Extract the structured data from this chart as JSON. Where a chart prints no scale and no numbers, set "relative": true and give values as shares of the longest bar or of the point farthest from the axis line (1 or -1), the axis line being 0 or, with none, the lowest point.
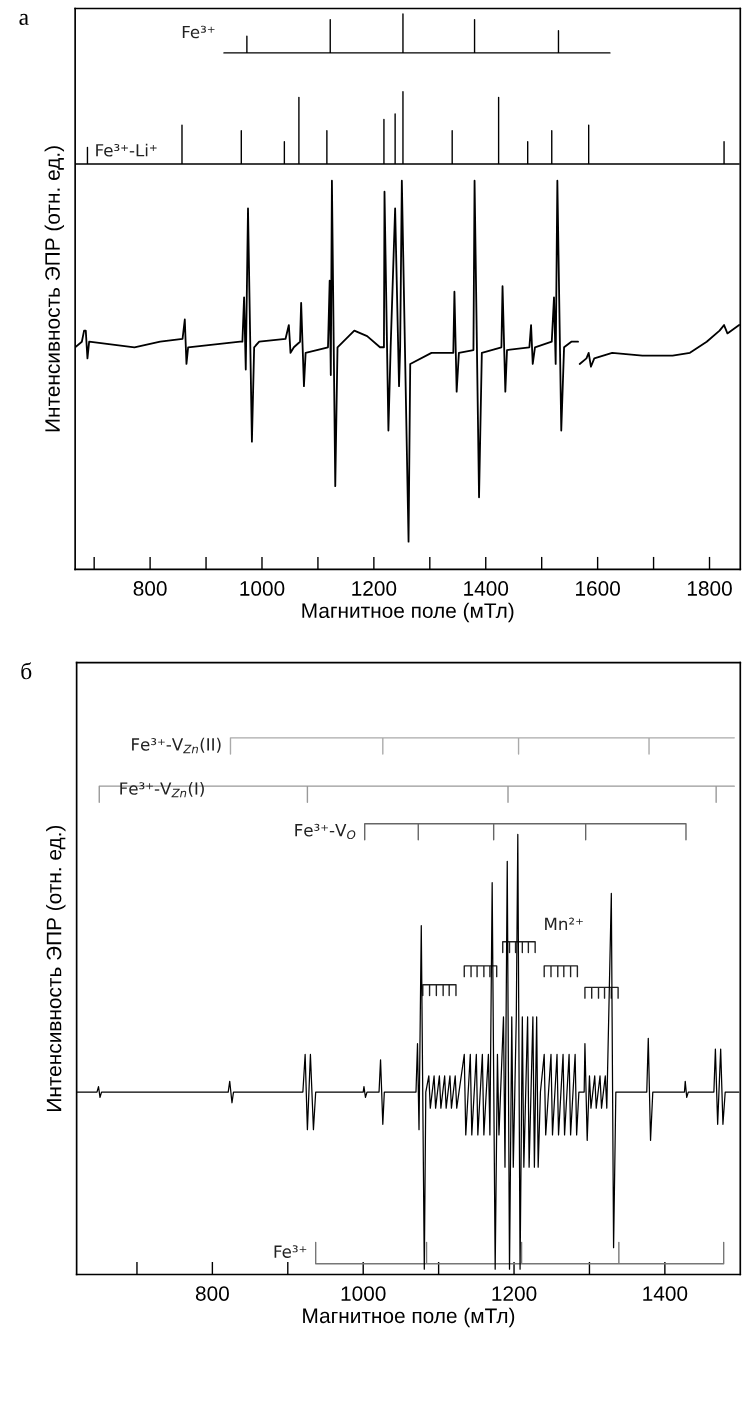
{
  "chart_data": [
    {
      "type": "line",
      "title": "а",
      "xlabel": "Магнитное поле (мТл)",
      "ylabel": "Интенсивность ЭПР (отн. ед.)",
      "relative": true,
      "tick_labels": "x",
      "xlim": [
        666,
        1855
      ],
      "xticks": [
        {
          "value": 700,
          "label": null
        },
        800,
        {
          "value": 900,
          "label": null
        },
        1000,
        {
          "value": 1100,
          "label": null
        },
        1200,
        {
          "value": 1300,
          "label": null
        },
        1400,
        {
          "value": 1500,
          "label": null
        },
        1600,
        {
          "value": 1700,
          "label": null
        },
        1800
      ],
      "series": [
        {
          "name": "Fe³⁺",
          "color": "#000000",
          "x": [
            932,
            973,
            973,
            973,
            1122,
            1122,
            1122,
            1252,
            1252,
            1252,
            1380,
            1380,
            1380,
            1530,
            1530,
            1530,
            1622
          ],
          "values": [
            0.93,
            0.93,
            0.96,
            0.93,
            0.93,
            0.99,
            0.93,
            0.93,
            1.0,
            0.93,
            0.93,
            0.99,
            0.93,
            0.93,
            0.97,
            0.93,
            0.93
          ]
        },
        {
          "name": "Fe³⁺-Li⁺",
          "color": "#000000",
          "x": [
            666,
            688,
            688,
            688,
            857,
            857,
            857,
            963,
            963,
            963,
            1040,
            1040,
            1040,
            1066,
            1066,
            1066,
            1116,
            1116,
            1116,
            1218,
            1218,
            1218,
            1238,
            1238,
            1238,
            1252,
            1252,
            1252,
            1340,
            1340,
            1340,
            1423,
            1423,
            1423,
            1475,
            1475,
            1475,
            1518,
            1518,
            1518,
            1584,
            1584,
            1584,
            1826,
            1826,
            1826,
            1853
          ],
          "values": [
            0.73,
            0.73,
            0.76,
            0.73,
            0.73,
            0.8,
            0.73,
            0.73,
            0.79,
            0.73,
            0.73,
            0.77,
            0.73,
            0.73,
            0.85,
            0.73,
            0.73,
            0.79,
            0.73,
            0.73,
            0.81,
            0.73,
            0.73,
            0.82,
            0.73,
            0.73,
            0.86,
            0.73,
            0.73,
            0.79,
            0.73,
            0.73,
            0.85,
            0.73,
            0.73,
            0.77,
            0.73,
            0.73,
            0.79,
            0.73,
            0.73,
            0.8,
            0.73,
            0.73,
            0.77,
            0.73,
            0.73
          ]
        },
        {
          "color": "#000000",
          "x": [
            666,
            678,
            682,
            685,
            688,
            691,
            772,
            818,
            858,
            862,
            865,
            868,
            961,
            965,
            968,
            971,
            975,
            982,
            986,
            995,
            1042,
            1048,
            1051,
            1057,
            1068,
            1070,
            1075,
            1078,
            1118,
            1121,
            1123,
            1125,
            1131,
            1135,
            1165,
            1188,
            1211,
            1218,
            1219,
            1226,
            1230,
            1238,
            1245,
            1247,
            1250,
            1262,
            1265,
            1303,
            1342,
            1344,
            1348,
            1352,
            1378,
            1380,
            1388,
            1393,
            1428,
            1430,
            1435,
            1438,
            1478,
            1481,
            1484,
            1488,
            1518,
            1522,
            1525,
            1528,
            1535,
            1540,
            1553,
            1565,
            1567,
            1568,
            1580,
            1584,
            1588,
            1594,
            1626,
            1680,
            1734,
            1765,
            1795,
            1818,
            1826,
            1832,
            1853
          ],
          "values": [
            0.4,
            0.41,
            0.43,
            0.43,
            0.38,
            0.41,
            0.4,
            0.41,
            0.415,
            0.45,
            0.37,
            0.4,
            0.41,
            0.41,
            0.49,
            0.36,
            0.65,
            0.23,
            0.4,
            0.41,
            0.415,
            0.44,
            0.39,
            0.4,
            0.41,
            0.48,
            0.33,
            0.39,
            0.4,
            0.52,
            0.35,
            0.7,
            0.15,
            0.4,
            0.43,
            0.42,
            0.4,
            0.4,
            0.68,
            0.25,
            0.4,
            0.65,
            0.33,
            0.4,
            0.7,
            0.05,
            0.37,
            0.39,
            0.39,
            0.5,
            0.32,
            0.39,
            0.395,
            0.7,
            0.13,
            0.39,
            0.4,
            0.51,
            0.32,
            0.395,
            0.4,
            0.44,
            0.37,
            0.4,
            0.41,
            0.49,
            0.37,
            0.7,
            0.25,
            0.4,
            0.41,
            0.41,
            null,
            0.37,
            0.38,
            0.39,
            0.365,
            0.38,
            0.39,
            0.385,
            0.385,
            0.39,
            0.41,
            0.43,
            0.44,
            0.425,
            0.44
          ]
        }
      ]
    },
    {
      "type": "line",
      "title": "б",
      "xlabel": "Магнитное поле (мТл)",
      "ylabel": "Интенсивность ЭПР (отн. ед.)",
      "relative": true,
      "tick_labels": "x",
      "xlim": [
        620,
        1500
      ],
      "xticks": [
        {
          "value": 700,
          "label": null
        },
        800,
        {
          "value": 900,
          "label": null
        },
        1000,
        {
          "value": 1100,
          "label": null
        },
        1200,
        {
          "value": 1300,
          "label": null
        },
        1400
      ],
      "series": [
        {
          "name": "Fe³⁺-V$_{Zn}$(II)",
          "color": "#aaaaaa",
          "x": [
            824,
            824,
            1026,
            1026,
            1026,
            1206,
            1206,
            1206,
            1379,
            1379,
            1379,
            1492
          ],
          "values": [
            0.97,
            1.0,
            1.0,
            0.97,
            1.0,
            1.0,
            0.97,
            1.0,
            1.0,
            0.97,
            1.0,
            1.0
          ]
        },
        {
          "name": "Fe³⁺-V$_{Zn}$(I)",
          "color": "#999999",
          "x": [
            650,
            650,
            926,
            926,
            926,
            1192,
            1192,
            1192,
            1468,
            1468,
            1468,
            1492
          ],
          "values": [
            0.88,
            0.91,
            0.91,
            0.88,
            0.91,
            0.91,
            0.88,
            0.91,
            0.91,
            0.88,
            0.91,
            0.91
          ]
        },
        {
          "name": "Fe³⁺-V$_{O}$",
          "color": "#666666",
          "x": [
            1002,
            1002,
            1073,
            1073,
            1073,
            1173,
            1173,
            1173,
            1295,
            1295,
            1295,
            1428,
            1428
          ],
          "values": [
            0.81,
            0.84,
            0.84,
            0.81,
            0.84,
            0.84,
            0.81,
            0.84,
            0.84,
            0.81,
            0.84,
            0.84,
            0.81
          ]
        },
        {
          "name": "Mn²⁺",
          "color": "#222222",
          "x": [
            1079,
            1079,
            1088,
            1088,
            1088,
            1097,
            1097,
            1097,
            1106,
            1106,
            1106,
            1114,
            1114,
            1114,
            1123,
            1123,
            1128,
            1134,
            1134,
            1143,
            1143,
            1143,
            1151,
            1151,
            1151,
            1160,
            1160,
            1160,
            1168,
            1168,
            1168,
            1177,
            1177,
            1181,
            1185,
            1185,
            1194,
            1194,
            1194,
            1202,
            1202,
            1202,
            1211,
            1211,
            1211,
            1219,
            1219,
            1219,
            1228,
            1228,
            1234,
            1240,
            1240,
            1249,
            1249,
            1249,
            1258,
            1258,
            1258,
            1266,
            1266,
            1266,
            1275,
            1275,
            1275,
            1284,
            1284,
            1289,
            1294,
            1294,
            1303,
            1303,
            1303,
            1312,
            1312,
            1312,
            1320,
            1320,
            1320,
            1329,
            1329,
            1329,
            1338,
            1338
          ],
          "values": [
            0.52,
            0.54,
            0.54,
            0.52,
            0.54,
            0.54,
            0.52,
            0.54,
            0.54,
            0.52,
            0.54,
            0.54,
            0.52,
            0.54,
            0.54,
            0.52,
            null,
            0.555,
            0.575,
            0.575,
            0.555,
            0.575,
            0.575,
            0.555,
            0.575,
            0.575,
            0.555,
            0.575,
            0.575,
            0.555,
            0.575,
            0.575,
            0.555,
            null,
            0.6,
            0.62,
            0.62,
            0.6,
            0.62,
            0.62,
            0.6,
            0.62,
            0.62,
            0.6,
            0.62,
            0.62,
            0.6,
            0.62,
            0.62,
            0.6,
            null,
            0.555,
            0.575,
            0.575,
            0.555,
            0.575,
            0.575,
            0.555,
            0.575,
            0.575,
            0.555,
            0.575,
            0.575,
            0.555,
            0.575,
            0.575,
            0.555,
            null,
            0.515,
            0.535,
            0.535,
            0.515,
            0.535,
            0.535,
            0.515,
            0.535,
            0.535,
            0.515,
            0.535,
            0.535,
            0.515,
            0.535,
            0.535,
            0.515
          ]
        },
        {
          "name": "Fe³⁺",
          "color": "#777777",
          "x": [
            937,
            937,
            1084,
            1084,
            1084,
            1210,
            1210,
            1210,
            1339,
            1339,
            1339,
            1478,
            1478
          ],
          "values": [
            0.06,
            0.02,
            0.02,
            0.06,
            0.02,
            0.02,
            0.06,
            0.02,
            0.02,
            0.06,
            0.02,
            0.02,
            0.06
          ]
        },
        {
          "color": "#000000",
          "x": [
            621,
            647,
            649,
            651,
            653,
            821,
            823,
            826,
            828,
            920,
            923,
            926,
            930,
            934,
            937,
            1000,
            1001,
            1003,
            1005,
            1021,
            1023,
            1026,
            1028,
            1070,
            1072,
            1074,
            1077,
            1081,
            1083,
            1087,
            1089,
            1094,
            1096,
            1101,
            1103,
            1108,
            1110,
            1115,
            1117,
            1122,
            1124,
            1127,
            1134,
            1136,
            1142,
            1144,
            1150,
            1152,
            1158,
            1160,
            1166,
            1168,
            1171,
            1175,
            1178,
            1180,
            1186,
            1188,
            1191,
            1194,
            1197,
            1199,
            1203,
            1205,
            1208,
            1211,
            1213,
            1218,
            1220,
            1225,
            1227,
            1230,
            1232,
            1235,
            1240,
            1242,
            1249,
            1251,
            1257,
            1259,
            1265,
            1267,
            1273,
            1275,
            1281,
            1283,
            1286,
            1293,
            1294,
            1297,
            1300,
            1302,
            1307,
            1309,
            1314,
            1316,
            1321,
            1323,
            1329,
            1332,
            1335,
            1376,
            1378,
            1381,
            1384,
            1426,
            1427,
            1429,
            1431,
            1465,
            1467,
            1470,
            1474,
            1477,
            1480,
            1498
          ],
          "values": [
            0.34,
            0.34,
            0.35,
            0.33,
            0.34,
            0.34,
            0.36,
            0.32,
            0.34,
            0.34,
            0.41,
            0.27,
            0.41,
            0.27,
            0.34,
            0.34,
            0.35,
            0.33,
            0.34,
            0.34,
            0.4,
            0.28,
            0.34,
            0.34,
            0.43,
            0.27,
            0.65,
            0.01,
            0.34,
            0.37,
            0.31,
            0.37,
            0.31,
            0.37,
            0.31,
            0.37,
            0.31,
            0.37,
            0.31,
            0.37,
            0.31,
            0.34,
            0.41,
            0.26,
            0.41,
            0.26,
            0.41,
            0.26,
            0.41,
            0.26,
            0.41,
            0.26,
            0.73,
            0.01,
            0.41,
            0.26,
            0.48,
            0.2,
            0.77,
            0.01,
            0.48,
            0.2,
            0.48,
            0.82,
            0.01,
            0.48,
            0.2,
            0.48,
            0.2,
            0.48,
            0.2,
            0.48,
            0.2,
            0.34,
            0.41,
            0.26,
            0.41,
            0.26,
            0.41,
            0.26,
            0.41,
            0.26,
            0.41,
            0.26,
            0.41,
            0.26,
            0.34,
            0.34,
            0.43,
            0.25,
            0.37,
            0.31,
            0.37,
            0.31,
            0.37,
            0.31,
            0.37,
            0.31,
            0.71,
            0.05,
            0.34,
            0.34,
            0.44,
            0.25,
            0.34,
            0.34,
            0.36,
            0.33,
            0.34,
            0.34,
            0.42,
            0.28,
            0.42,
            0.28,
            0.34,
            0.34
          ]
        }
      ]
    }
  ]
}
